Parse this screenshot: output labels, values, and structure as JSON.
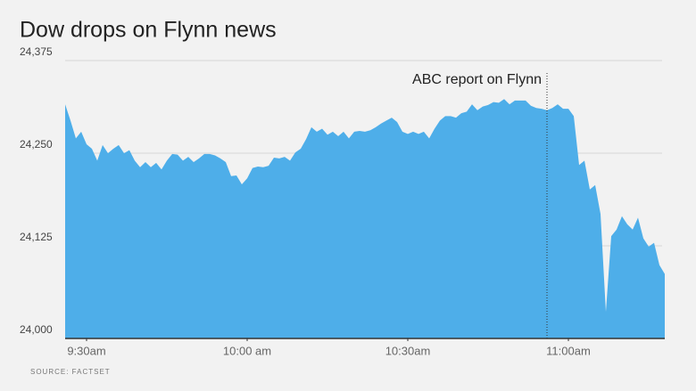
{
  "chart_data": {
    "type": "area",
    "title": "Dow drops on Flynn news",
    "source": "SOURCE: FACTSET",
    "x": [
      566,
      567,
      568,
      569,
      570,
      571,
      572,
      573,
      574,
      575,
      576,
      577,
      578,
      579,
      580,
      581,
      582,
      583,
      584,
      585,
      586,
      587,
      588,
      589,
      590,
      591,
      592,
      593,
      594,
      595,
      596,
      597,
      598,
      599,
      600,
      601,
      602,
      603,
      604,
      605,
      606,
      607,
      608,
      609,
      610,
      611,
      612,
      613,
      614,
      615,
      616,
      617,
      618,
      619,
      620,
      621,
      622,
      623,
      624,
      625,
      626,
      627,
      628,
      629,
      630,
      631,
      632,
      633,
      634,
      635,
      636,
      637,
      638,
      639,
      640,
      641,
      642,
      643,
      644,
      645,
      646,
      647,
      648,
      649,
      650,
      651,
      652,
      653,
      654,
      655,
      656,
      657,
      658,
      659,
      660,
      661,
      662,
      663,
      664,
      665,
      666,
      667,
      668,
      669,
      670,
      671,
      672,
      673,
      674,
      675,
      676,
      677,
      678
    ],
    "values": [
      24316,
      24294,
      24270,
      24279,
      24262,
      24256,
      24240,
      24261,
      24250,
      24256,
      24261,
      24250,
      24254,
      24240,
      24231,
      24238,
      24231,
      24237,
      24228,
      24240,
      24249,
      24248,
      24240,
      24245,
      24238,
      24243,
      24249,
      24249,
      24247,
      24243,
      24238,
      24219,
      24220,
      24208,
      24216,
      24230,
      24232,
      24231,
      24233,
      24244,
      24243,
      24245,
      24240,
      24251,
      24256,
      24269,
      24285,
      24279,
      24283,
      24275,
      24279,
      24273,
      24279,
      24270,
      24279,
      24280,
      24279,
      24281,
      24285,
      24290,
      24294,
      24298,
      24292,
      24279,
      24276,
      24279,
      24276,
      24279,
      24270,
      24283,
      24294,
      24300,
      24300,
      24298,
      24304,
      24306,
      24316,
      24308,
      24313,
      24315,
      24319,
      24318,
      24323,
      24316,
      24321,
      24321,
      24321,
      24314,
      24311,
      24310,
      24308,
      24311,
      24316,
      24310,
      24310,
      24300,
      24234,
      24240,
      24201,
      24207,
      24168,
      24036,
      24138,
      24147,
      24165,
      24154,
      24147,
      24163,
      24135,
      24124,
      24129,
      24099,
      24087
    ],
    "color": "#4eaee9",
    "xlim": [
      566,
      678
    ],
    "xticks": [
      {
        "value": 570,
        "label": "9:30am"
      },
      {
        "value": 600,
        "label": "10:00 am"
      },
      {
        "value": 630,
        "label": "10:30am"
      },
      {
        "value": 660,
        "label": "11:00am"
      }
    ],
    "ylim": [
      24000,
      24375
    ],
    "yticks": [
      {
        "value": 24000,
        "label": "24,000"
      },
      {
        "value": 24125,
        "label": "24,125"
      },
      {
        "value": 24250,
        "label": "24,250"
      },
      {
        "value": 24375,
        "label": "24,375"
      }
    ],
    "grid": true,
    "annotation": {
      "x": 656,
      "text": "ABC report on Flynn"
    }
  }
}
